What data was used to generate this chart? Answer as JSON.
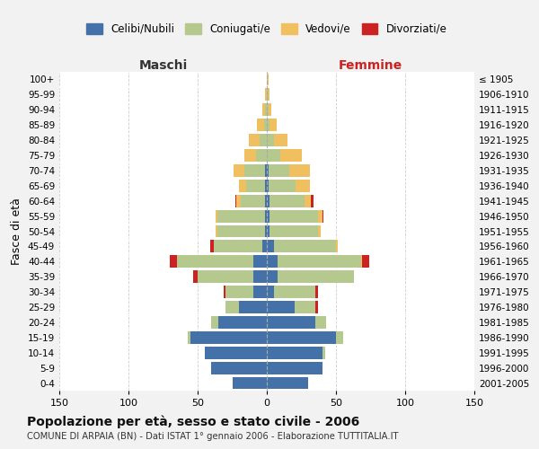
{
  "age_groups": [
    "0-4",
    "5-9",
    "10-14",
    "15-19",
    "20-24",
    "25-29",
    "30-34",
    "35-39",
    "40-44",
    "45-49",
    "50-54",
    "55-59",
    "60-64",
    "65-69",
    "70-74",
    "75-79",
    "80-84",
    "85-89",
    "90-94",
    "95-99",
    "100+"
  ],
  "birth_years": [
    "2001-2005",
    "1996-2000",
    "1991-1995",
    "1986-1990",
    "1981-1985",
    "1976-1980",
    "1971-1975",
    "1966-1970",
    "1961-1965",
    "1956-1960",
    "1951-1955",
    "1946-1950",
    "1941-1945",
    "1936-1940",
    "1931-1935",
    "1926-1930",
    "1921-1925",
    "1916-1920",
    "1911-1915",
    "1906-1910",
    "≤ 1905"
  ],
  "male_celibe": [
    25,
    40,
    45,
    55,
    35,
    20,
    10,
    10,
    10,
    3,
    1,
    1,
    1,
    1,
    1,
    0,
    0,
    0,
    0,
    0,
    0
  ],
  "male_coniugato": [
    0,
    0,
    0,
    2,
    5,
    10,
    20,
    40,
    55,
    35,
    35,
    35,
    18,
    14,
    15,
    8,
    5,
    2,
    1,
    0,
    0
  ],
  "male_vedovo": [
    0,
    0,
    0,
    0,
    0,
    0,
    0,
    0,
    0,
    0,
    1,
    1,
    3,
    5,
    8,
    8,
    8,
    5,
    2,
    1,
    0
  ],
  "male_divorziato": [
    0,
    0,
    0,
    0,
    0,
    0,
    1,
    3,
    5,
    3,
    0,
    0,
    1,
    0,
    0,
    0,
    0,
    0,
    0,
    0,
    0
  ],
  "female_nubile": [
    30,
    40,
    40,
    50,
    35,
    20,
    5,
    8,
    8,
    5,
    2,
    2,
    2,
    1,
    1,
    0,
    0,
    0,
    0,
    0,
    0
  ],
  "female_coniugata": [
    0,
    0,
    2,
    5,
    8,
    15,
    30,
    55,
    60,
    45,
    35,
    35,
    25,
    20,
    15,
    10,
    5,
    2,
    1,
    1,
    0
  ],
  "female_vedova": [
    0,
    0,
    0,
    0,
    0,
    0,
    0,
    0,
    1,
    1,
    2,
    3,
    5,
    10,
    15,
    15,
    10,
    5,
    2,
    1,
    1
  ],
  "female_divorziata": [
    0,
    0,
    0,
    0,
    0,
    2,
    2,
    0,
    5,
    0,
    0,
    1,
    2,
    0,
    0,
    0,
    0,
    0,
    0,
    0,
    0
  ],
  "colors_celibe": "#4472a8",
  "colors_coniugato": "#b5c98e",
  "colors_vedovo": "#f0c060",
  "colors_divorziato": "#cc2222",
  "xlim": 150,
  "title": "Popolazione per età, sesso e stato civile - 2006",
  "subtitle": "COMUNE DI ARPAIA (BN) - Dati ISTAT 1° gennaio 2006 - Elaborazione TUTTITALIA.IT",
  "ylabel_left": "Fasce di età",
  "legend_labels": [
    "Celibi/Nubili",
    "Coniugati/e",
    "Vedovi/e",
    "Divorziati/e"
  ],
  "header_maschi": "Maschi",
  "header_femmine": "Femmine",
  "background_color": "#f2f2f2",
  "plot_background": "#ffffff",
  "xtick_labels": [
    "150",
    "100",
    "50",
    "0",
    "50",
    "100",
    "150"
  ]
}
